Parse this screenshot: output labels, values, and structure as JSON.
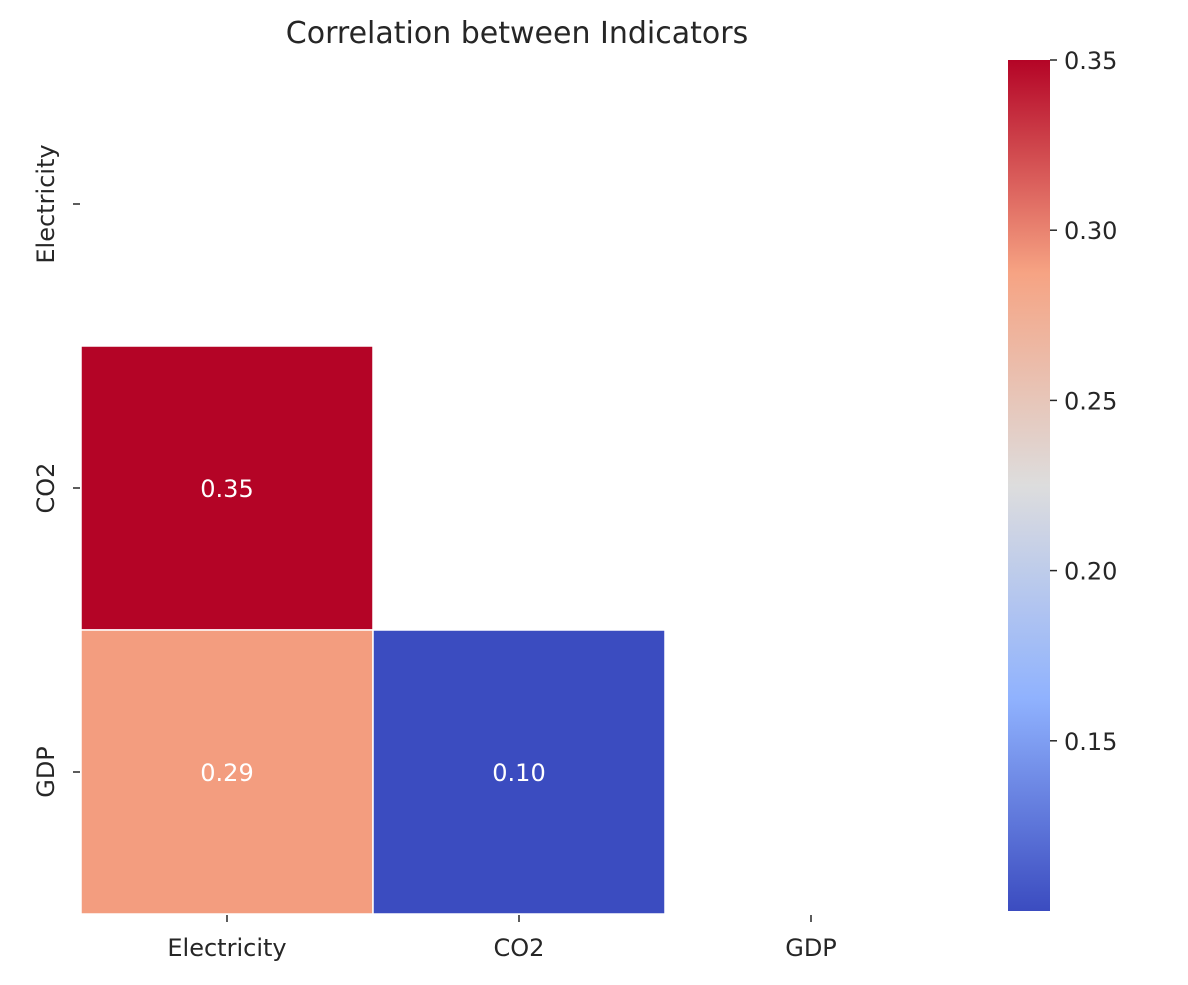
{
  "chart_data": {
    "type": "heatmap",
    "title": "Correlation between Indicators",
    "xlabel": "",
    "ylabel": "",
    "x_categories": [
      "Electricity",
      "CO2",
      "GDP"
    ],
    "y_categories": [
      "Electricity",
      "CO2",
      "GDP"
    ],
    "mask": "upper-triangle-including-diagonal",
    "cells": [
      {
        "row": "CO2",
        "col": "Electricity",
        "value": 0.35,
        "label": "0.35"
      },
      {
        "row": "GDP",
        "col": "Electricity",
        "value": 0.29,
        "label": "0.29"
      },
      {
        "row": "GDP",
        "col": "CO2",
        "value": 0.1,
        "label": "0.10"
      }
    ],
    "colormap": "coolwarm",
    "colorbar": {
      "range": [
        0.1,
        0.35
      ],
      "ticks": [
        0.15,
        0.2,
        0.25,
        0.3,
        0.35
      ],
      "tick_labels": [
        "0.15",
        "0.20",
        "0.25",
        "0.30",
        "0.35"
      ],
      "placement": "right"
    },
    "colors": {
      "cell_border": "#ffffff",
      "annotation_text": "#ffffff",
      "text": "#262626"
    }
  }
}
